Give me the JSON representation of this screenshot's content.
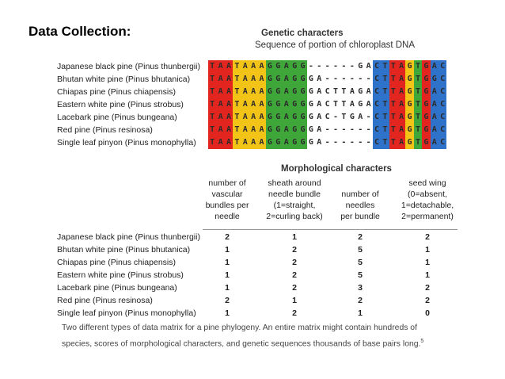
{
  "heading": "Data Collection:",
  "genetic": {
    "title": "Genetic characters",
    "subtitle": "Sequence of portion of chloroplast DNA",
    "species": [
      "Japanese black pine (Pinus thunbergii)",
      "Bhutan white pine (Pinus bhutanica)",
      "Chiapas pine (Pinus chiapensis)",
      "Eastern white pine (Pinus strobus)",
      "Lacebark pine (Pinus bungeana)",
      "Red pine (Pinus resinosa)",
      "Single leaf pinyon (Pinus monophylla)"
    ],
    "sequences": [
      "TAATAAAGGAGG------GACTTAGTGAC",
      "TAATAAAGGAGGGA------CTTAGTGGC",
      "TAATAAAGGAGGGACTTAGACTTAGTGAC",
      "TAATAAAGGAGGGACTTAGACTTAGTGAC",
      "TAATAAAGGAGGGAC-TGA-CTTAGTGAC",
      "TAATAAAGGAGGGA------CTTAGTGAC",
      "TAATAAAGGAGGGA------CTTAGTGAC"
    ],
    "column_colors": [
      "red",
      "red",
      "red",
      "yellow",
      "yellow",
      "yellow",
      "yellow",
      "green",
      "green",
      "green",
      "green",
      "green",
      "white",
      "white",
      "white",
      "white",
      "white",
      "white",
      "white",
      "white",
      "blue",
      "blue",
      "red",
      "red",
      "yellow",
      "green",
      "red",
      "blue",
      "blue"
    ],
    "colors": {
      "red": "#e2251f",
      "yellow": "#f3c418",
      "green": "#3fa63a",
      "blue": "#2f72c9"
    }
  },
  "morph": {
    "title": "Morphological characters",
    "columns": [
      {
        "lines": [
          "number of",
          "vascular",
          "bundles per",
          "needle"
        ]
      },
      {
        "lines": [
          "sheath around",
          "needle bundle",
          "(1=straight,",
          "2=curling back)"
        ]
      },
      {
        "lines": [
          "number of",
          "needles",
          "per bundle"
        ]
      },
      {
        "lines": [
          "seed wing",
          "(0=absent,",
          "1=detachable,",
          "2=permanent)"
        ]
      }
    ],
    "species": [
      "Japanese black pine (Pinus thunbergii)",
      "Bhutan white pine (Pinus bhutanica)",
      "Chiapas pine (Pinus chiapensis)",
      "Eastern white pine (Pinus strobus)",
      "Lacebark pine (Pinus bungeana)",
      "Red pine (Pinus resinosa)",
      "Single leaf pinyon (Pinus monophylla)"
    ],
    "values": [
      [
        "2",
        "1",
        "2",
        "2"
      ],
      [
        "1",
        "2",
        "5",
        "1"
      ],
      [
        "1",
        "2",
        "5",
        "1"
      ],
      [
        "1",
        "2",
        "5",
        "1"
      ],
      [
        "1",
        "2",
        "3",
        "2"
      ],
      [
        "2",
        "1",
        "2",
        "2"
      ],
      [
        "1",
        "2",
        "1",
        "0"
      ]
    ]
  },
  "caption": "Two different types of data matrix for a pine phylogeny. An entire matrix might contain hundreds of species, scores of morphological characters, and genetic sequences thousands of base pairs long.",
  "caption_sup": "5"
}
